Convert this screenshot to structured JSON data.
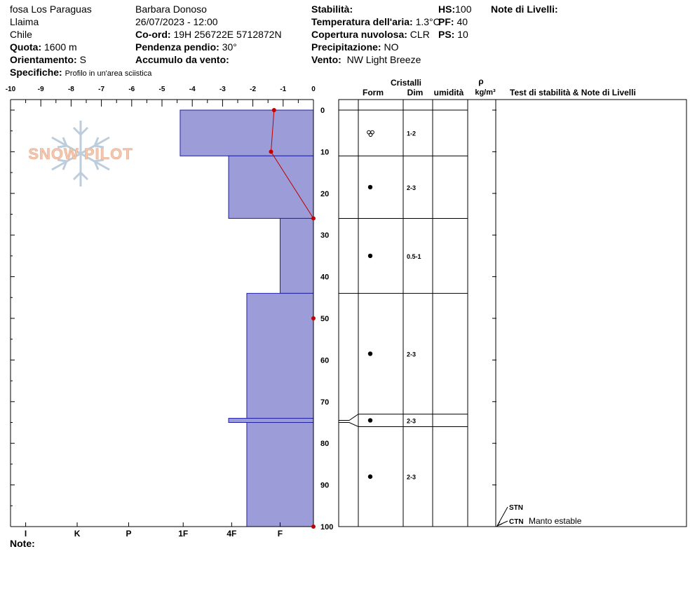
{
  "header": {
    "location": "fosa Los Paraguas",
    "area": "Llaima",
    "country": "Chile",
    "elevation_label": "Quota:",
    "elevation": "1600 m",
    "aspect_label": "Orientamento:",
    "aspect": "S",
    "specifics_label": "Specifiche:",
    "specifics": "Profilo in un'area sciistica",
    "observer": "Barbara Donoso",
    "datetime": "26/07/2023 - 12:00",
    "coord_label": "Co-ord:",
    "coord": "19H 256722E 5712872N",
    "slope_label": "Pendenza pendio:",
    "slope": "30°",
    "wind_loading_label": "Accumulo da vento:",
    "wind_loading": "",
    "stability_label": "Stabilità:",
    "stability": "",
    "air_temp_label": "Temperatura dell'aria:",
    "air_temp": "1.3°C",
    "sky_label": "Copertura nuvolosa:",
    "sky": "CLR",
    "precip_label": "Precipitazione:",
    "precip": "NO",
    "wind_label": "Vento:",
    "wind": "NW Light Breeze",
    "hs_label": "HS:",
    "hs": "100",
    "pf_label": "PF:",
    "pf": "40",
    "ps_label": "PS:",
    "ps": "10",
    "layer_notes_label": "Note di Livelli:",
    "notes_label": "Note:"
  },
  "watermark": "SNOW PILOT",
  "table_headers": {
    "crystals": "Cristalli",
    "form": "Form",
    "size": "Dim",
    "moisture": "umidità",
    "density_symbol": "ρ",
    "density_unit": "kg/m³",
    "tests": "Test di stabilità & Note di Livelli"
  },
  "colors": {
    "hardness_fill": "#9c9cd8",
    "hardness_stroke": "#2020a0",
    "temp_line": "#c00000",
    "grid": "#000000"
  },
  "chart_data": {
    "type": "snow-profile",
    "temp_axis": {
      "range": [
        -10,
        0
      ],
      "ticks": [
        "-10",
        "-9",
        "-8",
        "-7",
        "-6",
        "-5",
        "-4",
        "-3",
        "-2",
        "-1",
        "0"
      ]
    },
    "depth_axis": {
      "range": [
        0,
        100
      ],
      "ticks": [
        "0",
        "10",
        "20",
        "30",
        "40",
        "50",
        "60",
        "70",
        "80",
        "90",
        "100"
      ]
    },
    "hardness_axis": {
      "labels": [
        "I",
        "K",
        "P",
        "1F",
        "4F",
        "F"
      ],
      "label_values": [
        -9.5,
        -7.8,
        -6.1,
        -4.3,
        -2.7,
        -1.1
      ]
    },
    "hardness_layers": [
      {
        "top": 0,
        "bottom": 11,
        "value": -4.4
      },
      {
        "top": 11,
        "bottom": 26,
        "value": -2.8
      },
      {
        "top": 26,
        "bottom": 44,
        "value": -1.1
      },
      {
        "top": 44,
        "bottom": 74,
        "value": -2.2
      },
      {
        "top": 74,
        "bottom": 75,
        "value": -2.8
      },
      {
        "top": 75,
        "bottom": 100,
        "value": -2.2
      }
    ],
    "temperature_profile": [
      {
        "depth": 0,
        "temp": -1.3
      },
      {
        "depth": 10,
        "temp": -1.4
      },
      {
        "depth": 26,
        "temp": 0
      },
      {
        "depth": 50,
        "temp": 0
      },
      {
        "depth": 100,
        "temp": 0
      }
    ],
    "layers": [
      {
        "top": 0,
        "bottom": 11,
        "form": "melt-form",
        "size": "1-2"
      },
      {
        "top": 11,
        "bottom": 26,
        "form": "round",
        "size": "2-3"
      },
      {
        "top": 26,
        "bottom": 44,
        "form": "round",
        "size": "0.5-1"
      },
      {
        "top": 44,
        "bottom": 73,
        "form": "round",
        "size": "2-3"
      },
      {
        "top": 73,
        "bottom": 76,
        "form": "round",
        "size": "2-3"
      },
      {
        "top": 76,
        "bottom": 100,
        "form": "round",
        "size": "2-3"
      }
    ],
    "tests": [
      {
        "label": "STN",
        "note": "",
        "depth": 100
      },
      {
        "label": "CTN",
        "note": "Manto estable",
        "depth": 100
      }
    ]
  }
}
